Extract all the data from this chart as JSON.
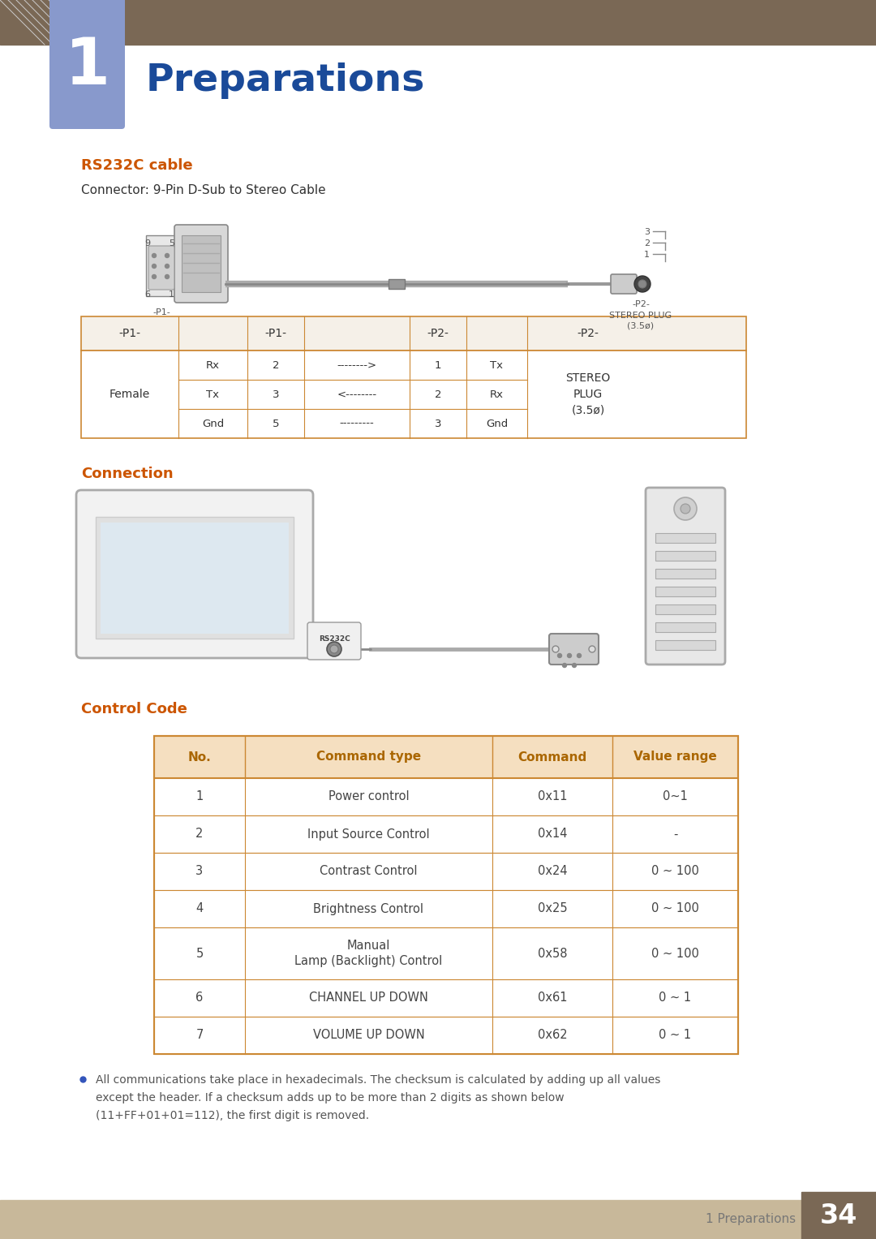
{
  "page_bg": "#ffffff",
  "header_bg": "#7a6855",
  "tab_color": "#8899cc",
  "title_text": "Preparations",
  "title_color": "#1a4a99",
  "section_color": "#cc5500",
  "section1_title": "RS232C cable",
  "section2_title": "Connection",
  "section3_title": "Control Code",
  "connector_text": "Connector: 9-Pin D-Sub to Stereo Cable",
  "table_header_bg": "#f5dfc0",
  "table_border_color": "#cc8833",
  "table_header_color": "#aa6600",
  "table_row_bg": "#ffffff",
  "table_data": [
    [
      "1",
      "Power control",
      "0x11",
      "0~1"
    ],
    [
      "2",
      "Input Source Control",
      "0x14",
      "-"
    ],
    [
      "3",
      "Contrast Control",
      "0x24",
      "0 ~ 100"
    ],
    [
      "4",
      "Brightness Control",
      "0x25",
      "0 ~ 100"
    ],
    [
      "5",
      "Manual\nLamp (Backlight) Control",
      "0x58",
      "0 ~ 100"
    ],
    [
      "6",
      "CHANNEL UP DOWN",
      "0x61",
      "0 ~ 1"
    ],
    [
      "7",
      "VOLUME UP DOWN",
      "0x62",
      "0 ~ 1"
    ]
  ],
  "table_headers": [
    "No.",
    "Command type",
    "Command",
    "Value range"
  ],
  "footnote_lines": [
    "All communications take place in hexadecimals. The checksum is calculated by adding up all values",
    "except the header. If a checksum adds up to be more than 2 digits as shown below",
    "(11+FF+01+01=112), the first digit is removed."
  ],
  "footnote_color": "#555555",
  "footer_bg": "#c8b89a",
  "footer_text": "1 Preparations",
  "footer_num": "34",
  "footer_num_bg": "#7a6855"
}
